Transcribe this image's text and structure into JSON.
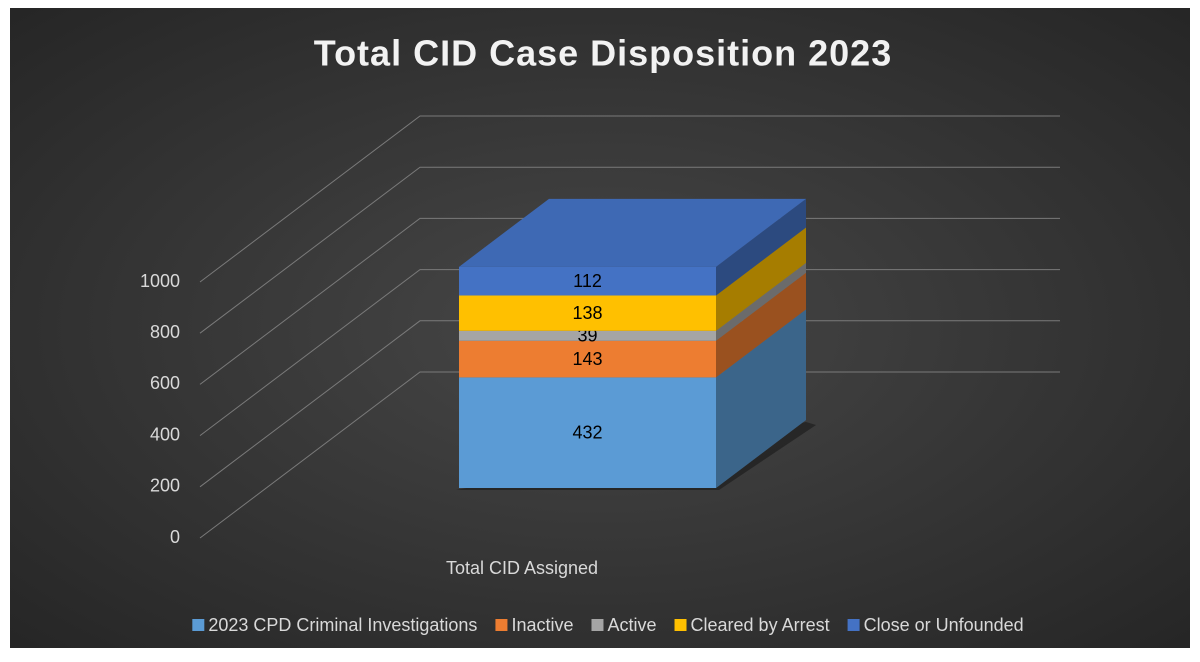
{
  "chart_data": {
    "type": "bar3d_stacked",
    "title": "Total CID Case Disposition 2023",
    "categories": [
      "Total CID Assigned"
    ],
    "series": [
      {
        "name": "2023 CPD Criminal Investigations",
        "color": "#5b9bd5",
        "values": [
          432
        ]
      },
      {
        "name": "Inactive",
        "color": "#ed7d31",
        "values": [
          143
        ]
      },
      {
        "name": "Active",
        "color": "#a5a5a5",
        "values": [
          39
        ]
      },
      {
        "name": "Cleared by Arrest",
        "color": "#ffc000",
        "values": [
          138
        ]
      },
      {
        "name": "Close or Unfounded",
        "color": "#4472c4",
        "values": [
          112
        ]
      }
    ],
    "ylim": [
      0,
      1000
    ],
    "yticks": [
      0,
      200,
      400,
      600,
      800,
      1000
    ],
    "grid": true,
    "legend": "bottom"
  }
}
